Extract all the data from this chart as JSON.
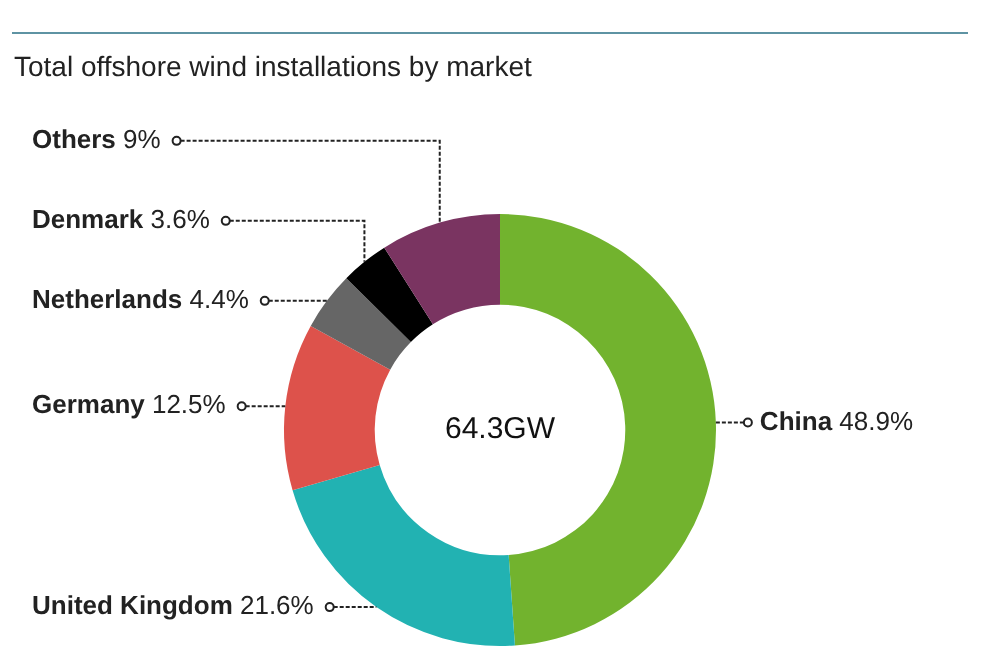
{
  "chart_data": {
    "type": "donut",
    "title": "Total offshore wind installations by market",
    "categories": [
      "China",
      "United Kingdom",
      "Germany",
      "Netherlands",
      "Denmark",
      "Others"
    ],
    "values": [
      48.9,
      21.6,
      12.5,
      4.4,
      3.6,
      9
    ],
    "value_labels": [
      "48.9%",
      "21.6%",
      "12.5%",
      "4.4%",
      "3.6%",
      "9%"
    ],
    "colors": [
      "#72b32e",
      "#22b2b2",
      "#dd524b",
      "#666666",
      "#000000",
      "#7a3461"
    ],
    "annotations": [
      "64.3GW"
    ],
    "legend": false
  }
}
